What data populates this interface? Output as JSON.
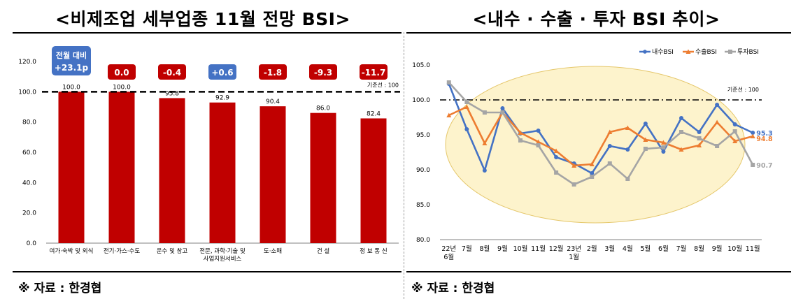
{
  "left": {
    "title": "<비제조업 세부업종 11월 전망 BSI>",
    "source": "※ 자료 : 한경협"
  },
  "right": {
    "title": "<내수 · 수출 · 투자 BSI 추이>",
    "source": "※ 자료 : 한경협"
  },
  "chart_data": [
    {
      "type": "bar",
      "categories": [
        "여가·숙박 및 외식",
        "전기·가스·수도",
        "운수 및 창고",
        "전문, 과학·기술 및\n사업지원서비스",
        "도·소매",
        "건 설",
        "정 보 통 신"
      ],
      "values": [
        100.0,
        100.0,
        95.8,
        92.9,
        90.4,
        86.0,
        82.4
      ],
      "value_labels": [
        "100.0",
        "100.0",
        "95.8",
        "92.9",
        "90.4",
        "86.0",
        "82.4"
      ],
      "change_labels": [
        "+23.1p",
        "0.0",
        "-0.4",
        "+0.6",
        "-1.8",
        "-9.3",
        "-11.7"
      ],
      "change_header": "전월 대비",
      "ylim": [
        0,
        120
      ],
      "yticks": [
        "0.0",
        "20.0",
        "40.0",
        "60.0",
        "80.0",
        "100.0",
        "120.0"
      ],
      "baseline": 100,
      "baseline_label": "기준선 : 100",
      "colors": {
        "bar": "#c00000",
        "badge_negative": "#c00000",
        "badge_positive": "#4472c4"
      }
    },
    {
      "type": "line",
      "x": [
        "22년\n6월",
        "7월",
        "8월",
        "9월",
        "10월",
        "11월",
        "12월",
        "23년\n1월",
        "2월",
        "3월",
        "4월",
        "5월",
        "6월",
        "7월",
        "8월",
        "9월",
        "10월",
        "11월"
      ],
      "series": [
        {
          "name": "내수BSI",
          "color": "#4472c4",
          "values": [
            102.3,
            95.8,
            89.9,
            98.8,
            95.2,
            95.6,
            91.8,
            90.9,
            89.5,
            93.4,
            92.9,
            96.6,
            92.6,
            97.4,
            95.4,
            99.3,
            96.5,
            95.3
          ]
        },
        {
          "name": "수출BSI",
          "color": "#ed7d31",
          "values": [
            97.8,
            99.0,
            93.8,
            98.2,
            95.3,
            94.0,
            92.7,
            90.6,
            90.8,
            95.4,
            96.0,
            94.3,
            93.9,
            92.9,
            93.5,
            96.8,
            94.1,
            94.8
          ]
        },
        {
          "name": "투자BSI",
          "color": "#a5a5a5",
          "values": [
            102.5,
            99.7,
            98.2,
            98.2,
            94.2,
            93.5,
            89.6,
            87.9,
            89.0,
            90.9,
            88.7,
            93.0,
            93.2,
            95.4,
            94.5,
            93.4,
            95.5,
            90.7
          ]
        }
      ],
      "end_labels": [
        "95.3",
        "94.8",
        "90.7"
      ],
      "ylim": [
        80,
        105
      ],
      "yticks": [
        "80.0",
        "85.0",
        "90.0",
        "95.0",
        "100.0",
        "105.0"
      ],
      "baseline": 100,
      "baseline_label": "기준선 : 100",
      "legend": "top-center"
    }
  ]
}
